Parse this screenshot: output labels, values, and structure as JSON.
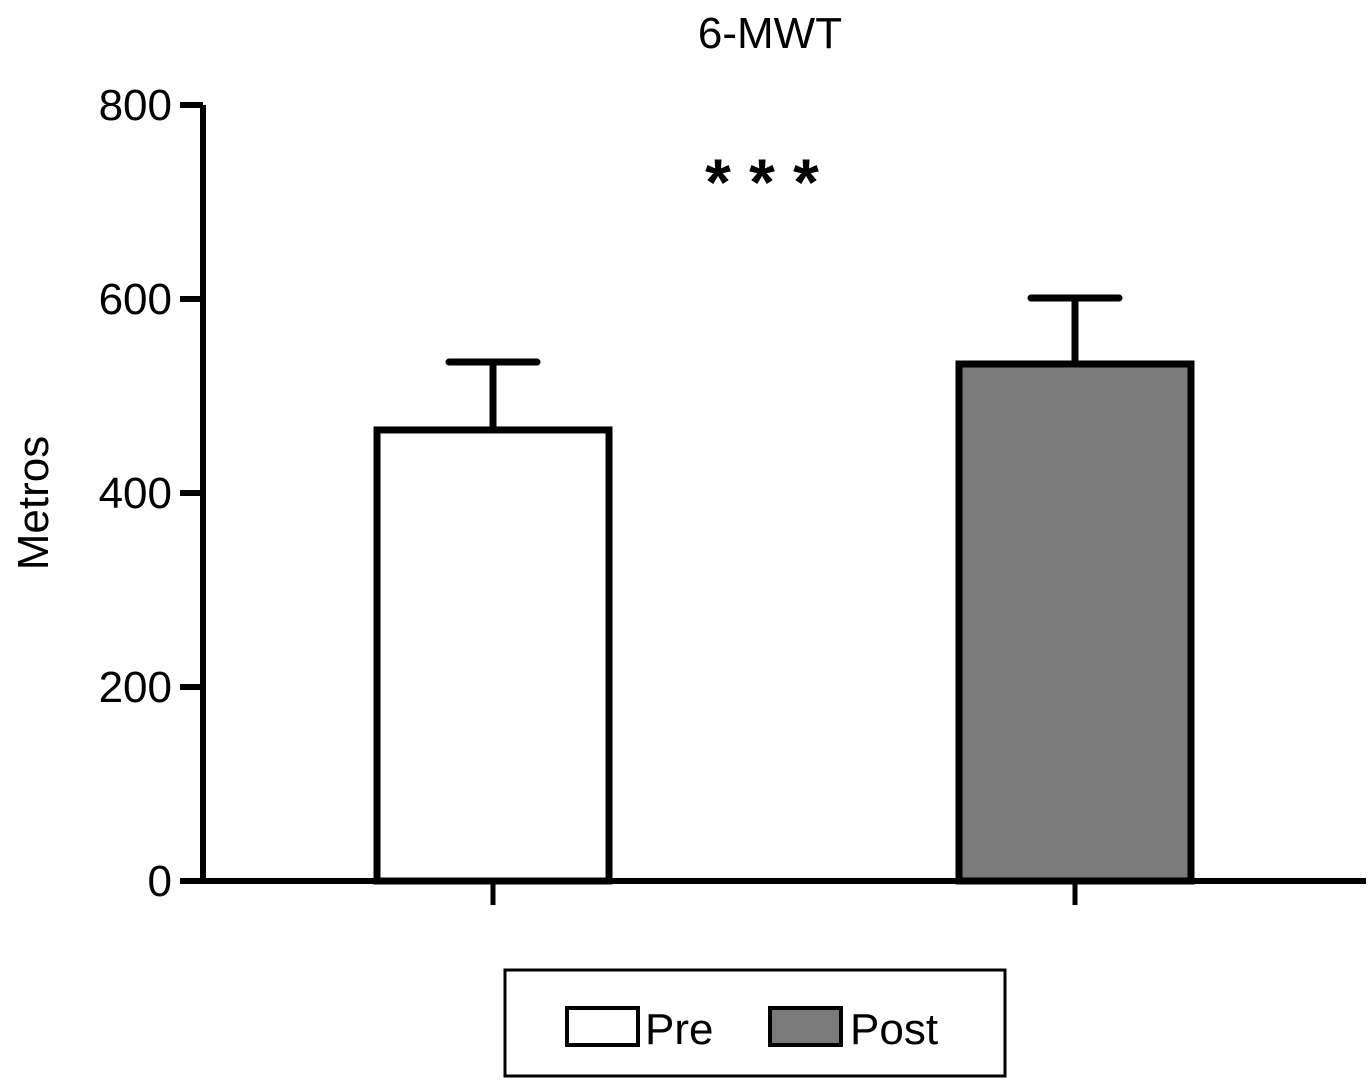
{
  "chart_data": {
    "type": "bar",
    "title": "6-MWT",
    "ylabel": "Metros",
    "xlabel": "",
    "ylim": [
      0,
      800
    ],
    "yticks": [
      0,
      200,
      400,
      600,
      800
    ],
    "grid": false,
    "categories": [
      "Pre",
      "Post"
    ],
    "values": [
      465,
      533
    ],
    "error_upper": [
      535,
      601
    ],
    "colors": [
      "#ffffff",
      "#7a7a7a"
    ],
    "annotation": "* * *",
    "annotation_color": "#14144a",
    "legend": {
      "position": "bottom",
      "entries": [
        "Pre",
        "Post"
      ]
    }
  }
}
